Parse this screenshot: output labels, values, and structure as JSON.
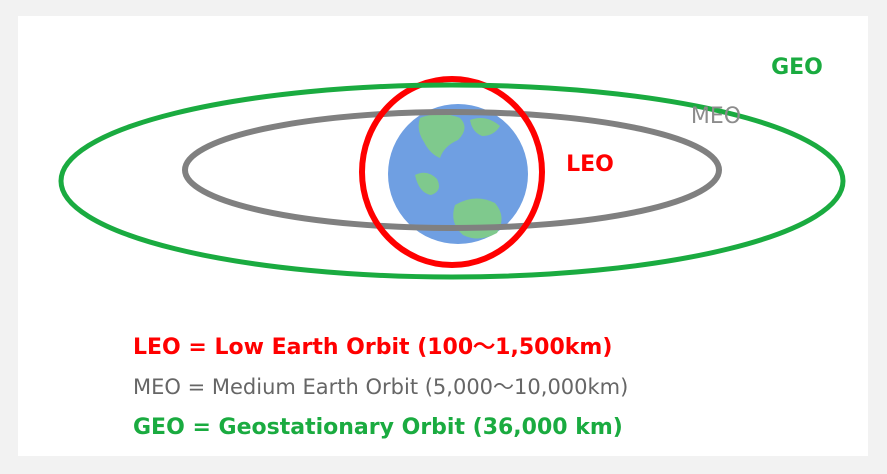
{
  "orbit_labels": {
    "geo": "GEO",
    "meo": "MEO",
    "leo": "LEO"
  },
  "legend": [
    "LEO = Low Earth Orbit  (100〜1,500km)",
    "MEO = Medium Earth Orbit (5,000〜10,000km)",
    "GEO = Geostationary Orbit  (36,000 km)"
  ]
}
